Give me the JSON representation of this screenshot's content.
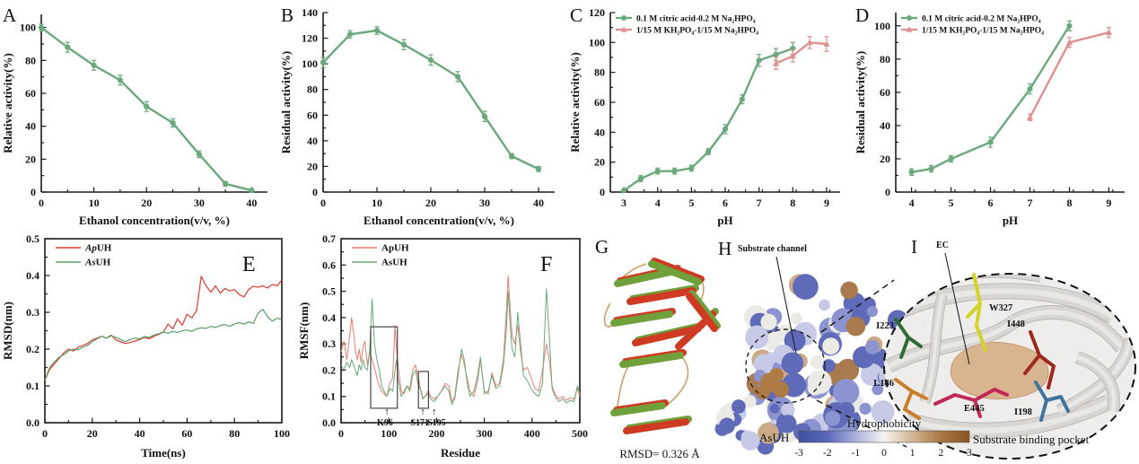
{
  "chart_data": [
    {
      "id": "A",
      "type": "line",
      "letter": "A",
      "xlabel": "Ethanol concentration(v/v, %)",
      "ylabel": "Relative activity(%)",
      "xlim": [
        0,
        43
      ],
      "ylim": [
        0,
        108
      ],
      "xticks": [
        0,
        10,
        20,
        30,
        40
      ],
      "yticks": [
        0,
        20,
        40,
        60,
        80,
        100
      ],
      "series": [
        {
          "name": "",
          "color": "#6aa97b",
          "marker": "circle",
          "x": [
            0,
            5,
            10,
            15,
            20,
            25,
            30,
            35,
            40
          ],
          "y": [
            100,
            88,
            77,
            68,
            52,
            42,
            23,
            5,
            1
          ],
          "err": [
            2,
            3,
            3,
            3,
            3,
            2.5,
            2,
            1.5,
            1
          ]
        }
      ]
    },
    {
      "id": "B",
      "type": "line",
      "letter": "B",
      "xlabel": "Ethanol concentration(v/v, %)",
      "ylabel": "Residual activity(%)",
      "xlim": [
        0,
        43
      ],
      "ylim": [
        0,
        140
      ],
      "xticks": [
        0,
        10,
        20,
        30,
        40
      ],
      "yticks": [
        0,
        20,
        40,
        60,
        80,
        100,
        120,
        140
      ],
      "series": [
        {
          "name": "",
          "color": "#6aa97b",
          "marker": "circle",
          "x": [
            0,
            5,
            10,
            15,
            20,
            25,
            30,
            35,
            40
          ],
          "y": [
            101,
            123,
            126,
            115,
            103,
            90,
            59,
            28,
            18
          ],
          "err": [
            4,
            3,
            3,
            4,
            4,
            4,
            4,
            2,
            2
          ]
        }
      ]
    },
    {
      "id": "C",
      "type": "line",
      "letter": "C",
      "xlabel": "pH",
      "ylabel": "Relative activity(%)",
      "xlim": [
        2.6,
        9.4
      ],
      "ylim": [
        0,
        120
      ],
      "xticks": [
        3,
        4,
        5,
        6,
        7,
        8,
        9
      ],
      "yticks": [
        0,
        20,
        40,
        60,
        80,
        100,
        120
      ],
      "series": [
        {
          "name": "0.1 M citric acid-0.2 M Na₂HPO₄",
          "color": "#6aa97b",
          "marker": "circle",
          "x": [
            3,
            3.5,
            4,
            4.5,
            5,
            5.5,
            6,
            6.5,
            7,
            7.5,
            8
          ],
          "y": [
            1,
            9,
            14,
            14,
            16,
            27,
            42,
            62,
            88,
            92,
            96
          ],
          "err": [
            1,
            2,
            2,
            2,
            2,
            2,
            3,
            3,
            4,
            4,
            4
          ]
        },
        {
          "name": "1/15 M KH₂PO₄-1/15 M Na₂HPO₄",
          "color": "#e0908f",
          "marker": "triangle",
          "x": [
            7.5,
            8,
            8.5,
            9
          ],
          "y": [
            86,
            91,
            100,
            99
          ],
          "err": [
            4,
            4,
            4,
            5
          ]
        }
      ]
    },
    {
      "id": "D",
      "type": "line",
      "letter": "D",
      "xlabel": "pH",
      "ylabel": "Residual activity(%)",
      "xlim": [
        3.6,
        9.4
      ],
      "ylim": [
        0,
        108
      ],
      "xticks": [
        4,
        5,
        6,
        7,
        8,
        9
      ],
      "yticks": [
        0,
        20,
        40,
        60,
        80,
        100
      ],
      "series": [
        {
          "name": "0.1 M citric acid-0.2 M Na₂HPO₄",
          "color": "#6aa97b",
          "marker": "circle",
          "x": [
            4,
            4.5,
            5,
            6,
            7,
            8
          ],
          "y": [
            12,
            14,
            20,
            30,
            62,
            100
          ],
          "err": [
            2,
            2,
            2,
            3,
            3,
            3
          ]
        },
        {
          "name": "1/15 M KH₂PO₄-1/15 M Na₂HPO₄",
          "color": "#e0908f",
          "marker": "triangle",
          "x": [
            7,
            8,
            9
          ],
          "y": [
            45,
            90,
            96
          ],
          "err": [
            2,
            3,
            3
          ]
        }
      ]
    },
    {
      "id": "E",
      "type": "line",
      "letter": "E",
      "xlabel": "Time(ns)",
      "ylabel": "RMSD(nm)",
      "xlim": [
        0,
        100
      ],
      "ylim": [
        0,
        0.5
      ],
      "xticks": [
        0,
        20,
        40,
        60,
        80,
        100
      ],
      "yticks": [
        0,
        0.1,
        0.2,
        0.3,
        0.4,
        0.5
      ],
      "series": [
        {
          "name": "ApUH",
          "color": "#e03b2c",
          "marker": null,
          "x": [
            0,
            2,
            4,
            6,
            8,
            10,
            12,
            14,
            16,
            18,
            20,
            22,
            24,
            26,
            28,
            30,
            32,
            34,
            36,
            38,
            40,
            42,
            44,
            46,
            48,
            50,
            52,
            54,
            56,
            58,
            60,
            62,
            64,
            66,
            68,
            70,
            72,
            74,
            76,
            78,
            80,
            82,
            84,
            86,
            88,
            90,
            92,
            94,
            96,
            98,
            100
          ],
          "y": [
            0.115,
            0.145,
            0.16,
            0.175,
            0.19,
            0.2,
            0.195,
            0.205,
            0.21,
            0.215,
            0.225,
            0.23,
            0.235,
            0.23,
            0.238,
            0.225,
            0.22,
            0.215,
            0.218,
            0.222,
            0.226,
            0.232,
            0.228,
            0.235,
            0.24,
            0.246,
            0.268,
            0.255,
            0.282,
            0.265,
            0.295,
            0.285,
            0.305,
            0.398,
            0.372,
            0.355,
            0.372,
            0.352,
            0.365,
            0.358,
            0.362,
            0.348,
            0.342,
            0.362,
            0.371,
            0.368,
            0.372,
            0.366,
            0.376,
            0.372,
            0.388
          ]
        },
        {
          "name": "AsUH",
          "color": "#55a065",
          "marker": null,
          "x": [
            0,
            2,
            4,
            6,
            8,
            10,
            12,
            14,
            16,
            18,
            20,
            22,
            24,
            26,
            28,
            30,
            32,
            34,
            36,
            38,
            40,
            42,
            44,
            46,
            48,
            50,
            52,
            54,
            56,
            58,
            60,
            62,
            64,
            66,
            68,
            70,
            72,
            74,
            76,
            78,
            80,
            82,
            84,
            86,
            88,
            90,
            92,
            94,
            96,
            98,
            100
          ],
          "y": [
            0.115,
            0.15,
            0.165,
            0.178,
            0.185,
            0.195,
            0.2,
            0.198,
            0.205,
            0.21,
            0.22,
            0.228,
            0.235,
            0.23,
            0.236,
            0.232,
            0.226,
            0.22,
            0.226,
            0.23,
            0.228,
            0.234,
            0.232,
            0.238,
            0.242,
            0.246,
            0.243,
            0.248,
            0.245,
            0.25,
            0.252,
            0.248,
            0.255,
            0.258,
            0.256,
            0.262,
            0.259,
            0.264,
            0.267,
            0.262,
            0.268,
            0.272,
            0.268,
            0.274,
            0.27,
            0.298,
            0.308,
            0.288,
            0.276,
            0.284,
            0.28
          ]
        }
      ]
    },
    {
      "id": "F",
      "type": "line",
      "letter": "F",
      "xlabel": "Residue",
      "ylabel": "RMSF(nm)",
      "xlim": [
        0,
        500
      ],
      "ylim": [
        0,
        0.7
      ],
      "xticks": [
        0,
        100,
        200,
        300,
        400,
        500
      ],
      "yticks": [
        0,
        0.1,
        0.2,
        0.3,
        0.4,
        0.5,
        0.6,
        0.7
      ],
      "series": [
        {
          "name": "ApUH",
          "color": "#e87d70",
          "marker": null,
          "x": [
            0,
            6,
            12,
            18,
            22,
            26,
            30,
            34,
            38,
            42,
            46,
            50,
            55,
            60,
            65,
            70,
            75,
            80,
            85,
            90,
            96,
            102,
            108,
            113,
            116,
            120,
            126,
            132,
            138,
            144,
            150,
            156,
            162,
            168,
            171,
            176,
            182,
            188,
            195,
            202,
            210,
            218,
            226,
            232,
            238,
            245,
            252,
            258,
            264,
            270,
            278,
            286,
            292,
            300,
            308,
            316,
            324,
            332,
            340,
            346,
            350,
            354,
            358,
            364,
            370,
            376,
            382,
            390,
            398,
            406,
            414,
            422,
            430,
            436,
            442,
            448,
            456,
            464,
            472,
            480,
            488,
            495,
            500
          ],
          "y": [
            0.27,
            0.31,
            0.24,
            0.33,
            0.4,
            0.35,
            0.27,
            0.24,
            0.28,
            0.23,
            0.29,
            0.31,
            0.22,
            0.27,
            0.24,
            0.21,
            0.17,
            0.14,
            0.12,
            0.11,
            0.1,
            0.15,
            0.17,
            0.37,
            0.28,
            0.21,
            0.12,
            0.11,
            0.14,
            0.13,
            0.2,
            0.22,
            0.17,
            0.11,
            0.095,
            0.1,
            0.12,
            0.1,
            0.09,
            0.1,
            0.12,
            0.15,
            0.14,
            0.08,
            0.1,
            0.2,
            0.26,
            0.22,
            0.17,
            0.12,
            0.1,
            0.16,
            0.24,
            0.12,
            0.11,
            0.19,
            0.14,
            0.15,
            0.24,
            0.42,
            0.56,
            0.44,
            0.33,
            0.3,
            0.37,
            0.27,
            0.2,
            0.21,
            0.17,
            0.13,
            0.12,
            0.2,
            0.3,
            0.24,
            0.14,
            0.11,
            0.09,
            0.1,
            0.085,
            0.095,
            0.09,
            0.13,
            0.1
          ]
        },
        {
          "name": "AsUH",
          "color": "#69ab77",
          "marker": null,
          "x": [
            0,
            6,
            12,
            18,
            22,
            26,
            30,
            34,
            38,
            42,
            46,
            50,
            55,
            60,
            65,
            70,
            75,
            80,
            85,
            90,
            96,
            102,
            108,
            113,
            116,
            120,
            126,
            132,
            138,
            144,
            150,
            156,
            162,
            168,
            171,
            176,
            182,
            188,
            195,
            202,
            210,
            218,
            226,
            232,
            238,
            245,
            252,
            258,
            264,
            270,
            278,
            286,
            292,
            300,
            308,
            316,
            324,
            332,
            340,
            346,
            350,
            354,
            358,
            364,
            370,
            376,
            382,
            390,
            398,
            406,
            414,
            422,
            430,
            436,
            442,
            448,
            456,
            464,
            472,
            480,
            488,
            495,
            500
          ],
          "y": [
            0.22,
            0.2,
            0.23,
            0.21,
            0.24,
            0.22,
            0.2,
            0.18,
            0.22,
            0.2,
            0.24,
            0.21,
            0.2,
            0.28,
            0.47,
            0.3,
            0.24,
            0.2,
            0.14,
            0.12,
            0.1,
            0.13,
            0.12,
            0.2,
            0.24,
            0.16,
            0.1,
            0.12,
            0.14,
            0.12,
            0.18,
            0.2,
            0.14,
            0.12,
            0.09,
            0.1,
            0.11,
            0.09,
            0.08,
            0.1,
            0.12,
            0.14,
            0.12,
            0.07,
            0.09,
            0.18,
            0.28,
            0.24,
            0.15,
            0.1,
            0.12,
            0.18,
            0.25,
            0.11,
            0.12,
            0.18,
            0.13,
            0.14,
            0.22,
            0.35,
            0.5,
            0.38,
            0.28,
            0.25,
            0.42,
            0.3,
            0.18,
            0.16,
            0.13,
            0.11,
            0.1,
            0.15,
            0.51,
            0.33,
            0.13,
            0.1,
            0.08,
            0.09,
            0.075,
            0.085,
            0.08,
            0.14,
            0.11
          ]
        }
      ],
      "annotations": {
        "boxes": [
          {
            "x0": 62,
            "x1": 118,
            "y0": 0.055,
            "y1": 0.365
          },
          {
            "x0": 162,
            "x1": 183,
            "y0": 0.055,
            "y1": 0.195
          }
        ],
        "pointers": [
          {
            "x": 96,
            "label": "K96",
            "lx": 92
          },
          {
            "x": 171,
            "label": "S171",
            "lx": 165
          },
          {
            "x": 195,
            "label": "S195",
            "lx": 200
          }
        ]
      }
    }
  ],
  "structures": {
    "g": {
      "letter": "G",
      "caption": "RMSD= 0.326 Å"
    },
    "h": {
      "letter": "H",
      "channel_label": "Substrate channel",
      "protein_label": "AsUH"
    },
    "i": {
      "letter": "I",
      "ec_label": "EC",
      "caption": "Substrate binding pocket",
      "residues": [
        {
          "label": "W327",
          "color": "#d3d32b"
        },
        {
          "label": "I223",
          "color": "#2e6b35"
        },
        {
          "label": "L146",
          "color": "#c8802c"
        },
        {
          "label": "I448",
          "color": "#9b2a1d"
        },
        {
          "label": "E445",
          "color": "#c02a56"
        },
        {
          "label": "I198",
          "color": "#41739f"
        }
      ]
    },
    "colorbar": {
      "title": "Hydrophobicity",
      "ticks": [
        -3,
        -2,
        -1,
        0,
        1,
        2,
        3
      ],
      "gradient": [
        "#3e51a0",
        "#5b67b8",
        "#aab1dc",
        "#f6f3ef",
        "#d3b492",
        "#a97843",
        "#8a5424"
      ]
    }
  }
}
